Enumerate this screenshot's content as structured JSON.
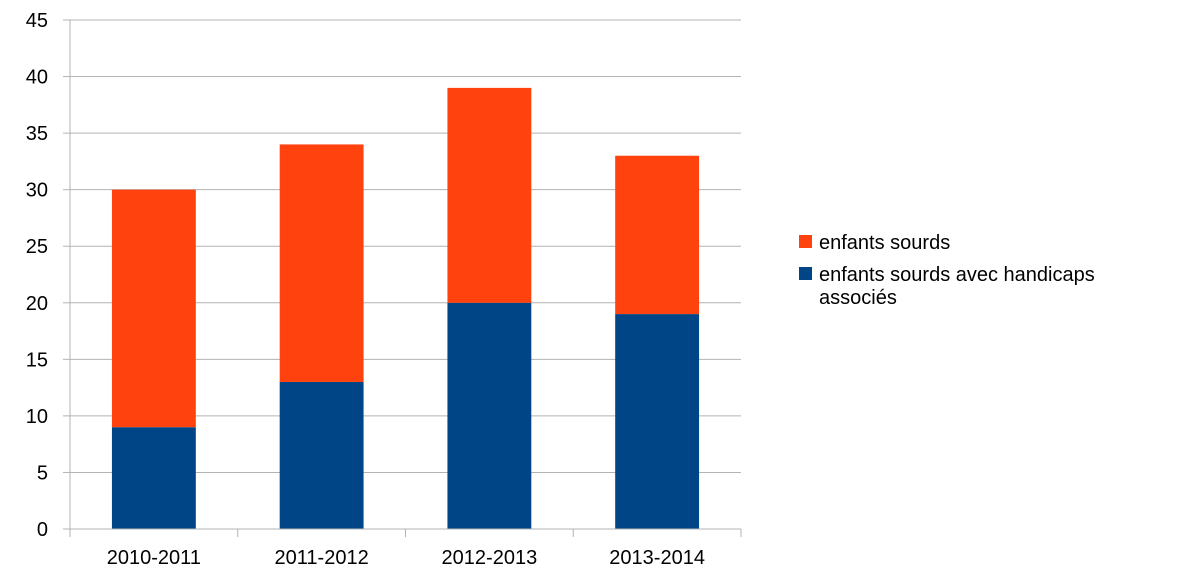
{
  "chart_data": {
    "type": "bar",
    "stacked": true,
    "categories": [
      "2010-2011",
      "2011-2012",
      "2012-2013",
      "2013-2014"
    ],
    "series": [
      {
        "name": "enfants sourds avec handicaps associés",
        "name_lines": [
          "enfants sourds avec handicaps",
          "associés"
        ],
        "color": "#004586",
        "values": [
          9,
          13,
          20,
          19
        ]
      },
      {
        "name": "enfants sourds",
        "name_lines": [
          "enfants sourds"
        ],
        "color": "#ff420e",
        "values": [
          21,
          21,
          19,
          14
        ]
      }
    ],
    "legend_order": [
      1,
      0
    ],
    "ylim": [
      0,
      45
    ],
    "yticks": [
      0,
      5,
      10,
      15,
      20,
      25,
      30,
      35,
      40,
      45
    ],
    "grid": true,
    "legend_position": "right",
    "title": "",
    "xlabel": "",
    "ylabel": ""
  }
}
